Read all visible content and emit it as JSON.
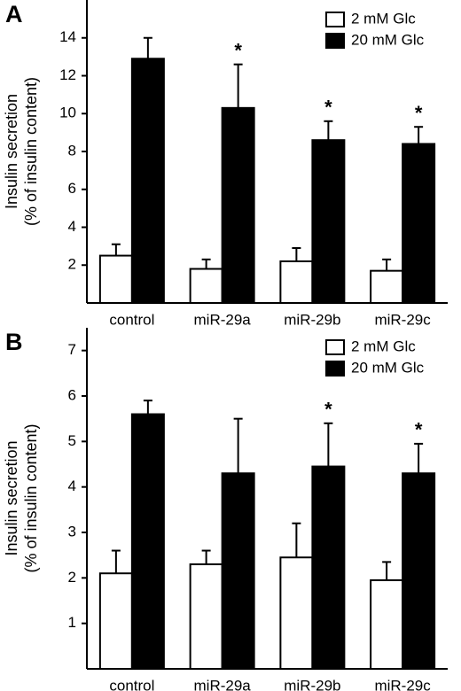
{
  "chart_data": [
    {
      "type": "bar",
      "panel": "A",
      "y_label": [
        "Insulin secretion",
        "(% of insulin content)"
      ],
      "categories": [
        "control",
        "miR-29a",
        "miR-29b",
        "miR-29c"
      ],
      "series": [
        {
          "name": "2 mM Glc",
          "color": "#ffffff",
          "values": [
            2.5,
            1.8,
            2.2,
            1.7
          ],
          "errors": [
            0.6,
            0.5,
            0.7,
            0.6
          ]
        },
        {
          "name": "20 mM Glc",
          "color": "#000000",
          "values": [
            12.9,
            10.3,
            8.6,
            8.4
          ],
          "errors": [
            1.1,
            2.3,
            1.0,
            0.9
          ]
        }
      ],
      "annotations": [
        {
          "text": "*",
          "category": "miR-29a",
          "series": "20 mM Glc"
        },
        {
          "text": "*",
          "category": "miR-29b",
          "series": "20 mM Glc"
        },
        {
          "text": "*",
          "category": "miR-29c",
          "series": "20 mM Glc"
        }
      ],
      "ylim": [
        0,
        16
      ],
      "yticks": [
        2,
        4,
        6,
        8,
        10,
        12,
        14
      ],
      "legend": "top-right"
    },
    {
      "type": "bar",
      "panel": "B",
      "y_label": [
        "Insulin secretion",
        "(% of insulin content)"
      ],
      "categories": [
        "control",
        "miR-29a",
        "miR-29b",
        "miR-29c"
      ],
      "series": [
        {
          "name": "2 mM Glc",
          "color": "#ffffff",
          "values": [
            2.1,
            2.3,
            2.45,
            1.95
          ],
          "errors": [
            0.5,
            0.3,
            0.75,
            0.4
          ]
        },
        {
          "name": "20 mM Glc",
          "color": "#000000",
          "values": [
            5.6,
            4.3,
            4.45,
            4.3
          ],
          "errors": [
            0.3,
            1.2,
            0.95,
            0.65
          ]
        }
      ],
      "annotations": [
        {
          "text": "*",
          "category": "miR-29b",
          "series": "20 mM Glc"
        },
        {
          "text": "*",
          "category": "miR-29c",
          "series": "20 mM Glc"
        }
      ],
      "ylim": [
        0,
        7.5
      ],
      "yticks": [
        1,
        2,
        3,
        4,
        5,
        6,
        7
      ],
      "legend": "top-right"
    }
  ]
}
